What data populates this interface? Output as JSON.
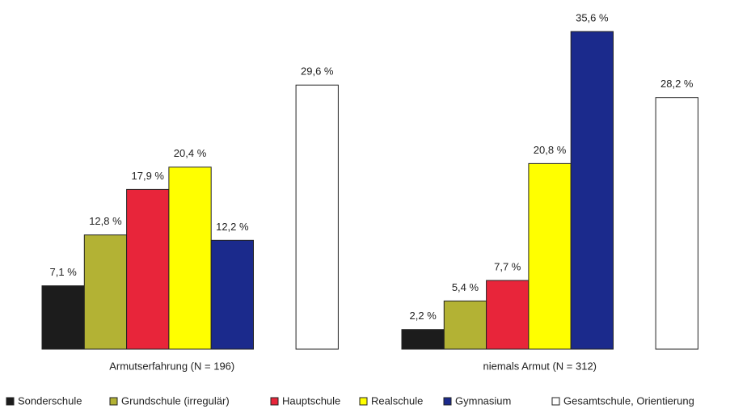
{
  "chart_data": {
    "type": "bar",
    "categories": [
      "Armutserfahrung (N = 196)",
      "niemals Armut (N = 312)"
    ],
    "series": [
      {
        "name": "Sonderschule",
        "color": "#1c1c1c",
        "values": [
          7.1,
          2.2
        ],
        "value_labels": [
          "7,1 %",
          "2,2 %"
        ]
      },
      {
        "name": "Grundschule (irregulär)",
        "color": "#b3b234",
        "values": [
          12.8,
          5.4
        ],
        "value_labels": [
          "12,8 %",
          "5,4 %"
        ]
      },
      {
        "name": "Hauptschule",
        "color": "#e8253a",
        "values": [
          17.9,
          7.7
        ],
        "value_labels": [
          "17,9 %",
          "7,7 %"
        ]
      },
      {
        "name": "Realschule",
        "color": "#ffff00",
        "values": [
          20.4,
          20.8
        ],
        "value_labels": [
          "20,4 %",
          "20,8 %"
        ]
      },
      {
        "name": "Gymnasium",
        "color": "#1b2a8c",
        "values": [
          12.2,
          35.6
        ],
        "value_labels": [
          "12,2 %",
          "35,6 %"
        ]
      },
      {
        "name": "Gesamtschule, Orientierung",
        "color": "#ffffff",
        "values": [
          29.6,
          28.2
        ],
        "value_labels": [
          "29,6 %",
          "28,2 %"
        ]
      }
    ]
  }
}
